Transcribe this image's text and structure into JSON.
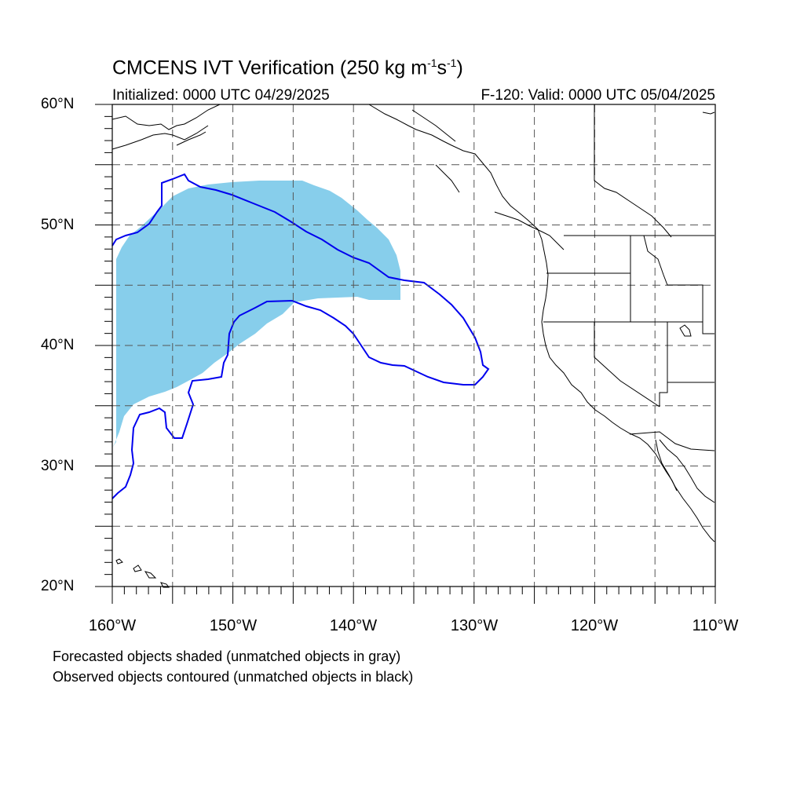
{
  "title": {
    "text_prefix": "CMCENS IVT Verification (250 kg m",
    "sup1": "-1",
    "text_mid": "s",
    "sup2": "-1",
    "text_suffix": ")"
  },
  "initialized": "Initialized: 0000 UTC 04/29/2025",
  "valid": "F-120: Valid: 0000 UTC 05/04/2025",
  "notes": [
    "Forecasted objects shaded (unmatched objects in gray)",
    "Observed objects contoured (unmatched objects in black)"
  ],
  "map_extent": {
    "lon_min": -160,
    "lon_max": -110,
    "lat_min": 20,
    "lat_max": 60
  },
  "lat_labels": [
    "20°N",
    "30°N",
    "40°N",
    "50°N",
    "60°N"
  ],
  "lon_labels": [
    "160°W",
    "150°W",
    "140°W",
    "130°W",
    "120°W",
    "110°W"
  ],
  "colors": {
    "forecast_fill": "#87ceeb",
    "observed_contour": "#0000ee",
    "coastline": "#000000",
    "grid": "#555555"
  }
}
